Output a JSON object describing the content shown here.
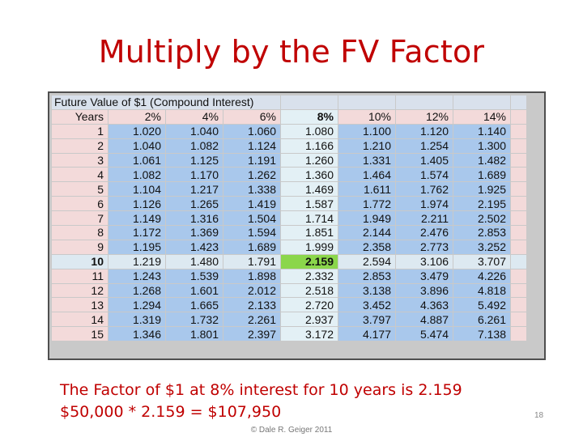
{
  "slide": {
    "title": "Multiply by the FV Factor",
    "line1": "The Factor of $1 at 8% interest for 10 years is 2.159",
    "line2": "$50,000 * 2.159 =  $107,950",
    "footer": "© Dale R. Geiger 2011",
    "page_number": "18"
  },
  "table": {
    "caption": "Future Value of $1 (Compound Interest)",
    "headers": [
      "Years",
      "2%",
      "4%",
      "6%",
      "8%",
      "10%",
      "12%",
      "14%"
    ],
    "highlight_column_index": 4,
    "highlight_row_year": "10",
    "rows": [
      [
        "1",
        "1.020",
        "1.040",
        "1.060",
        "1.080",
        "1.100",
        "1.120",
        "1.140"
      ],
      [
        "2",
        "1.040",
        "1.082",
        "1.124",
        "1.166",
        "1.210",
        "1.254",
        "1.300"
      ],
      [
        "3",
        "1.061",
        "1.125",
        "1.191",
        "1.260",
        "1.331",
        "1.405",
        "1.482"
      ],
      [
        "4",
        "1.082",
        "1.170",
        "1.262",
        "1.360",
        "1.464",
        "1.574",
        "1.689"
      ],
      [
        "5",
        "1.104",
        "1.217",
        "1.338",
        "1.469",
        "1.611",
        "1.762",
        "1.925"
      ],
      [
        "6",
        "1.126",
        "1.265",
        "1.419",
        "1.587",
        "1.772",
        "1.974",
        "2.195"
      ],
      [
        "7",
        "1.149",
        "1.316",
        "1.504",
        "1.714",
        "1.949",
        "2.211",
        "2.502"
      ],
      [
        "8",
        "1.172",
        "1.369",
        "1.594",
        "1.851",
        "2.144",
        "2.476",
        "2.853"
      ],
      [
        "9",
        "1.195",
        "1.423",
        "1.689",
        "1.999",
        "2.358",
        "2.773",
        "3.252"
      ],
      [
        "10",
        "1.219",
        "1.480",
        "1.791",
        "2.159",
        "2.594",
        "3.106",
        "3.707"
      ],
      [
        "11",
        "1.243",
        "1.539",
        "1.898",
        "2.332",
        "2.853",
        "3.479",
        "4.226"
      ],
      [
        "12",
        "1.268",
        "1.601",
        "2.012",
        "2.518",
        "3.138",
        "3.896",
        "4.818"
      ],
      [
        "13",
        "1.294",
        "1.665",
        "2.133",
        "2.720",
        "3.452",
        "4.363",
        "5.492"
      ],
      [
        "14",
        "1.319",
        "1.732",
        "2.261",
        "2.937",
        "3.797",
        "4.887",
        "6.261"
      ],
      [
        "15",
        "1.346",
        "1.801",
        "2.397",
        "3.172",
        "4.177",
        "5.474",
        "7.138"
      ]
    ]
  },
  "colors": {
    "title": "#c00000",
    "pink_cell": "#f3dada",
    "blue_cell": "#a9c8ec",
    "highlight_cell": "#8bd64b"
  }
}
